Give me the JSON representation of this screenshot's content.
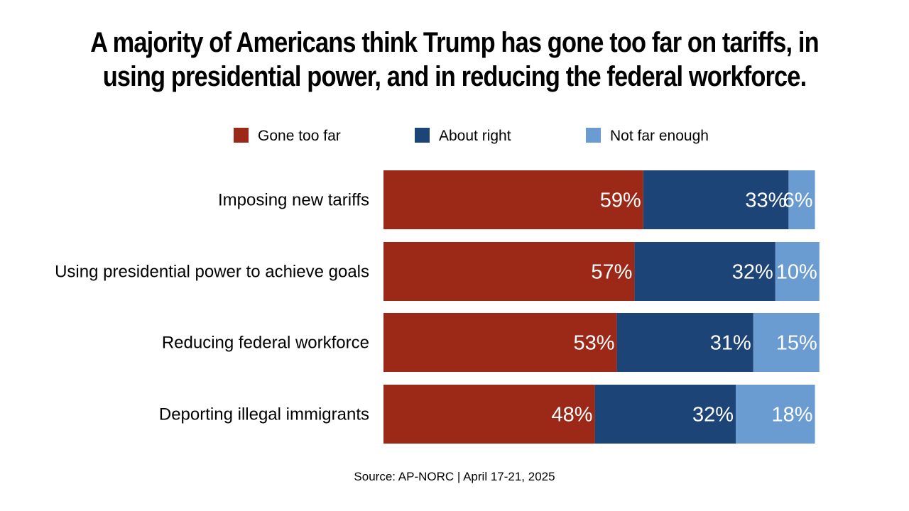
{
  "title_lines": [
    "A majority of Americans think Trump has gone too far on tariffs, in",
    "using presidential power, and in reducing the federal workforce."
  ],
  "source": "Source: AP-NORC | April 17-21, 2025",
  "chart_data": {
    "type": "bar",
    "orientation": "horizontal",
    "stacked": true,
    "categories": [
      "Imposing new tariffs",
      "Using presidential power to achieve goals",
      "Reducing federal workforce",
      "Deporting illegal immigrants"
    ],
    "series": [
      {
        "name": "Gone too far",
        "color": "#9C2818",
        "values": [
          59,
          57,
          53,
          48
        ]
      },
      {
        "name": "About right",
        "color": "#1D4477",
        "values": [
          33,
          32,
          31,
          32
        ]
      },
      {
        "name": "Not far enough",
        "color": "#6A9BD1",
        "values": [
          6,
          10,
          15,
          18
        ]
      }
    ],
    "labels": [
      [
        "59%",
        "33%",
        "6%"
      ],
      [
        "57%",
        "32%",
        "10%"
      ],
      [
        "53%",
        "31%",
        "15%"
      ],
      [
        "48%",
        "32%",
        "18%"
      ]
    ],
    "legend_position": "top",
    "xlim": [
      0,
      100
    ],
    "unit": "%"
  }
}
